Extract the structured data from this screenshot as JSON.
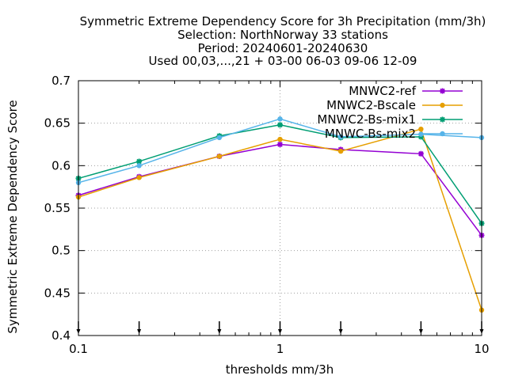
{
  "chart_data": {
    "type": "line",
    "title_lines": [
      "Symmetric Extreme Dependency Score  for 3h Precipitation (mm/3h)",
      "Selection: NorthNorway     33 stations",
      "Period: 20240601-20240630",
      "Used 00,03,...,21 + 03-00 06-03 09-06 12-09"
    ],
    "xlabel": "thresholds mm/3h",
    "ylabel": "Symmetric Extreme Dependency Score",
    "x_scale": "log",
    "xlim": [
      0.1,
      10
    ],
    "ylim": [
      0.4,
      0.7
    ],
    "x_ticks": [
      0.1,
      1,
      10
    ],
    "x_tick_labels": [
      "0.1",
      "1",
      "10"
    ],
    "y_ticks": [
      0.4,
      0.45,
      0.5,
      0.55,
      0.6,
      0.65,
      0.7
    ],
    "y_tick_labels": [
      "0.4",
      "0.45",
      "0.5",
      "0.55",
      "0.6",
      "0.65",
      "0.7"
    ],
    "grid": true,
    "legend_position": "top-right",
    "x": [
      0.1,
      0.2,
      0.5,
      1,
      2,
      5,
      10
    ],
    "series": [
      {
        "name": "MNWC2-ref",
        "color": "#9400d3",
        "marker": "star",
        "values": [
          0.565,
          0.587,
          0.611,
          0.625,
          0.619,
          0.614,
          0.518
        ]
      },
      {
        "name": "MNWC2-Bscale",
        "color": "#e69f00",
        "marker": "circle",
        "values": [
          0.563,
          0.586,
          0.611,
          0.631,
          0.617,
          0.643,
          0.43
        ]
      },
      {
        "name": "MNWC2-Bs-mix1",
        "color": "#009e73",
        "marker": "star",
        "values": [
          0.585,
          0.605,
          0.635,
          0.648,
          0.633,
          0.634,
          0.532
        ]
      },
      {
        "name": "MNWC-Bs-mix2",
        "color": "#56b4e9",
        "marker": "circle",
        "values": [
          0.58,
          0.6,
          0.633,
          0.655,
          0.634,
          0.637,
          0.633
        ]
      }
    ],
    "arrow_markers_x": [
      0.1,
      0.2,
      0.5,
      1,
      2,
      5,
      10
    ]
  }
}
